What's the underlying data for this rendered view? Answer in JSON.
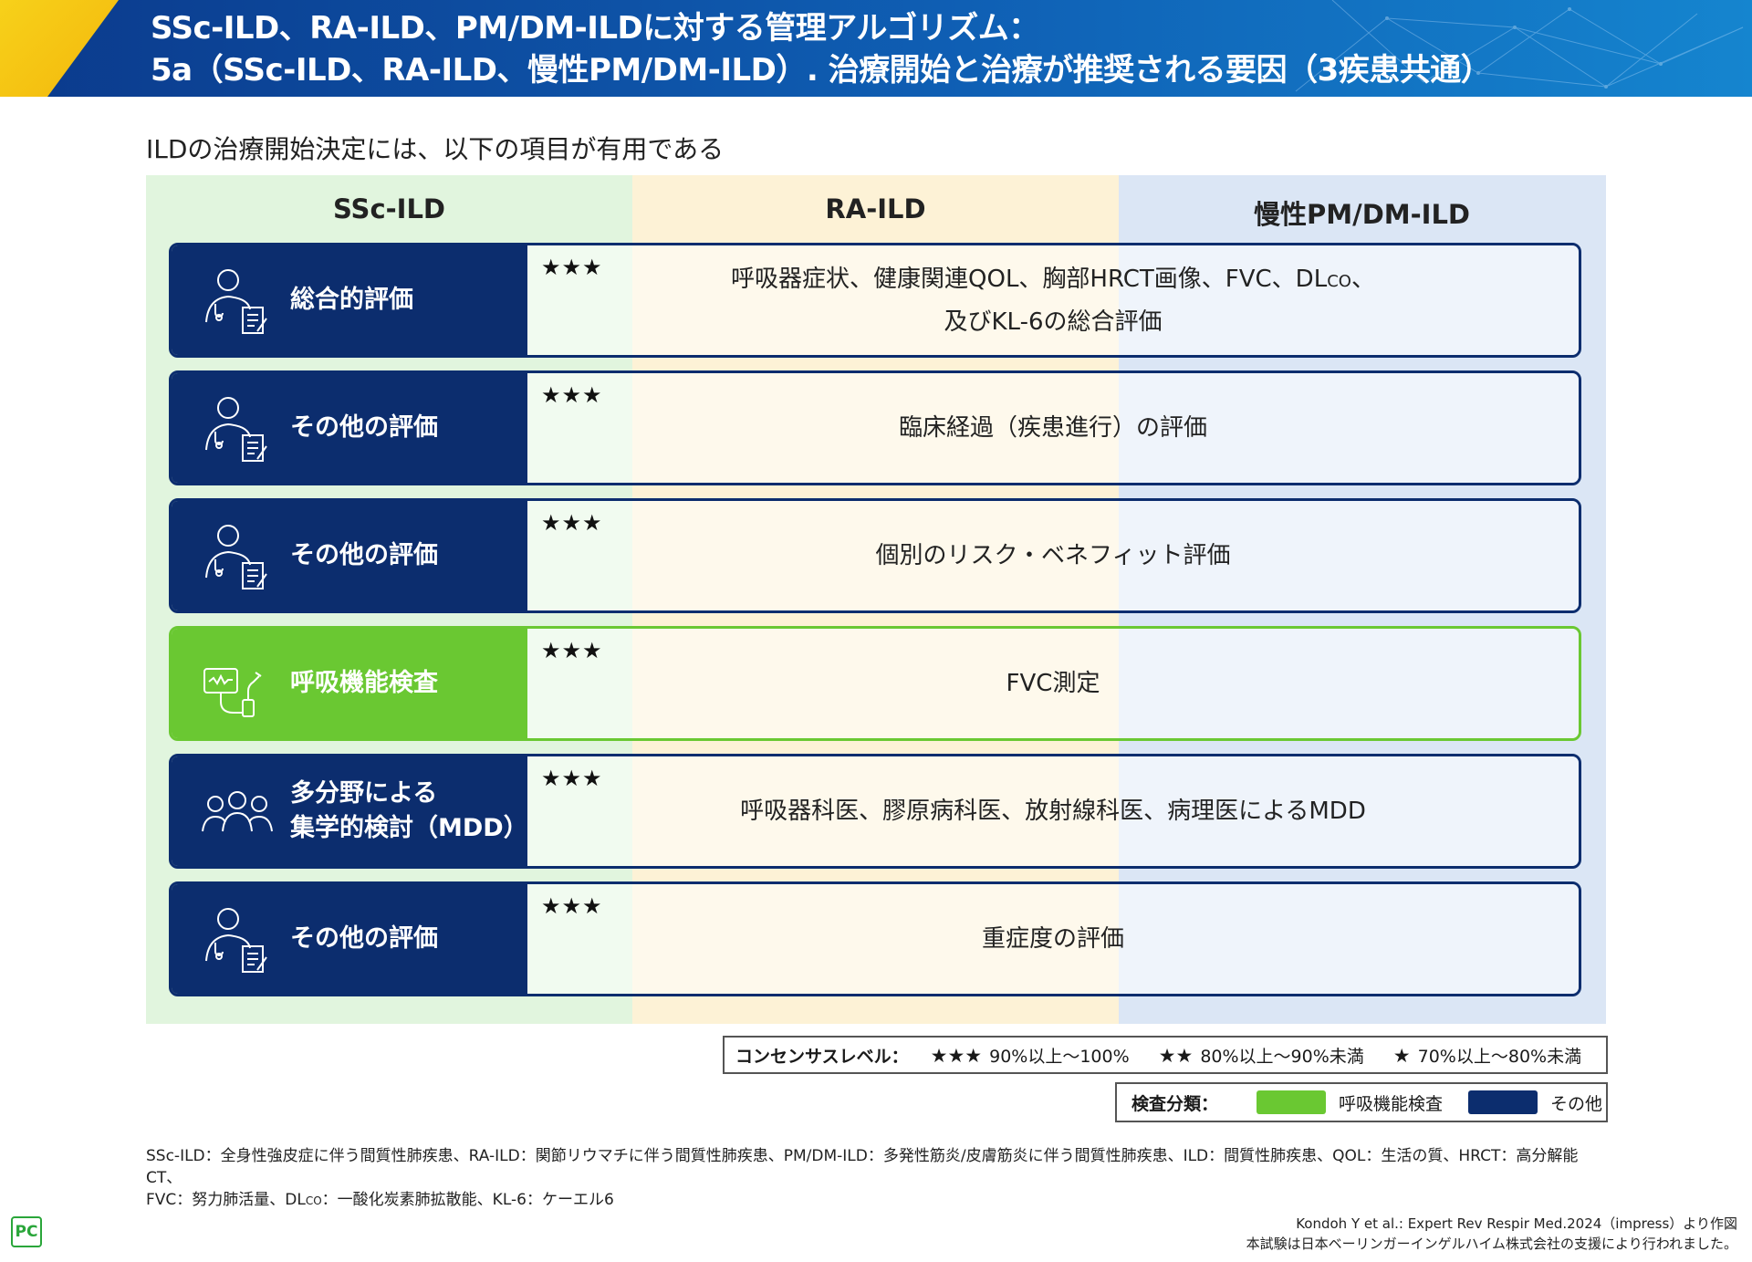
{
  "header": {
    "title_line1": "SSc-ILD、RA-ILD、PM/DM-ILDに対する管理アルゴリズム：",
    "title_line2": "5a（SSc-ILD、RA-ILD、慢性PM/DM-ILD）. 治療開始と治療が推奨される要因（3疾患共通）"
  },
  "subtitle": "ILDの治療開始決定には、以下の項目が有用である",
  "columns": [
    "SSc-ILD",
    "RA-ILD",
    "慢性PM/DM-ILD"
  ],
  "rows": [
    {
      "category": "総合的評価",
      "stars": "★★★",
      "text_a": "呼吸器症状、健康関連QOL、胸部HRCT画像、FVC、DL",
      "text_sub": "CO",
      "text_b": "、",
      "text_line2": "及びKL-6の総合評価",
      "icon": "doctor-icon",
      "type": "other"
    },
    {
      "category": "その他の評価",
      "stars": "★★★",
      "text": "臨床経過（疾患進行）の評価",
      "icon": "doctor-icon",
      "type": "other"
    },
    {
      "category": "その他の評価",
      "stars": "★★★",
      "text": "個別のリスク・ベネフィット評価",
      "icon": "doctor-icon",
      "type": "other"
    },
    {
      "category": "呼吸機能検査",
      "stars": "★★★",
      "text": "FVC測定",
      "icon": "spirometer-icon",
      "type": "respiratory"
    },
    {
      "category_line1": "多分野による",
      "category_line2": "集学的検討（MDD）",
      "stars": "★★★",
      "text": "呼吸器科医、膠原病科医、放射線科医、病理医によるMDD",
      "icon": "team-icon",
      "type": "other"
    },
    {
      "category": "その他の評価",
      "stars": "★★★",
      "text": "重症度の評価",
      "icon": "doctor-icon",
      "type": "other"
    }
  ],
  "legend_consensus": {
    "label": "コンセンサスレベル：",
    "levels": [
      {
        "stars": "★★★",
        "text": "90%以上～100%"
      },
      {
        "stars": "★★",
        "text": "80%以上～90%未満"
      },
      {
        "stars": "★",
        "text": "70%以上～80%未満"
      }
    ]
  },
  "legend_category": {
    "label": "検査分類：",
    "items": [
      {
        "text": "呼吸機能検査",
        "color": "#6ac832"
      },
      {
        "text": "その他",
        "color": "#0c2d6e"
      }
    ]
  },
  "footnote": {
    "line1": "SSc-ILD：全身性強皮症に伴う間質性肺疾患、RA-ILD：関節リウマチに伴う間質性肺疾患、PM/DM-ILD：多発性筋炎/皮膚筋炎に伴う間質性肺疾患、ILD：間質性肺疾患、QOL：生活の質、HRCT：高分解能CT、",
    "line2_a": "FVC：努力肺活量、DL",
    "line2_sub": "CO",
    "line2_b": "：一酸化炭素肺拡散能、KL-6：ケーエル6"
  },
  "logo": "PC",
  "citation": {
    "line1": "Kondoh Y et al.: Expert Rev Respir Med.2024（impress）より作図",
    "line2": "本試験は日本ベーリンガーインゲルハイム株式会社の支援により行われました。"
  },
  "colors": {
    "navy": "#0c2d6e",
    "green": "#6ac832",
    "header_blue": "#0f5fb4",
    "header_yellow": "#f7d11a"
  }
}
